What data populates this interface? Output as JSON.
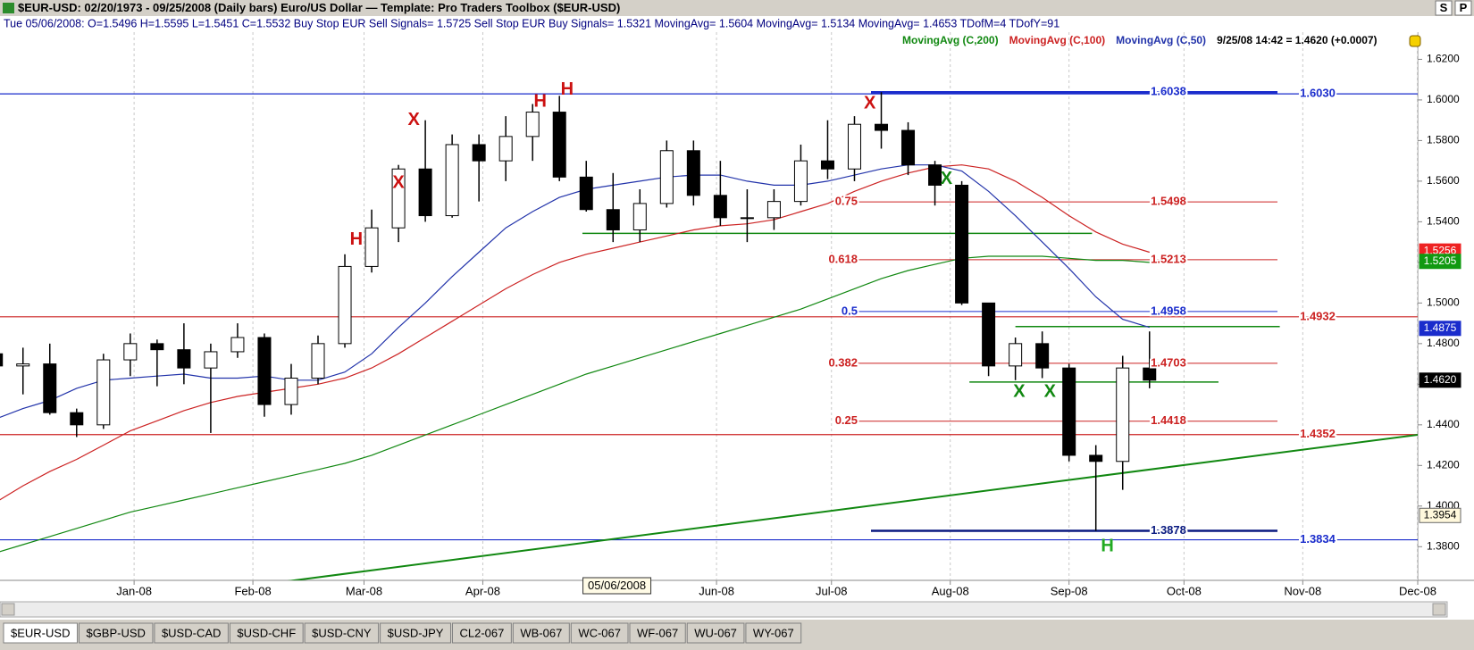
{
  "window": {
    "title": "$EUR-USD:  02/20/1973 - 09/25/2008  (Daily bars)    Euro/US Dollar  —  Template: Pro Traders Toolbox ($EUR-USD)",
    "buttons": [
      "S",
      "P"
    ]
  },
  "info_line": "Tue  05/06/2008:  O=1.5496  H=1.5595  L=1.5451  C=1.5532  Buy Stop EUR Sell Signals= 1.5725  Sell Stop EUR Buy Signals= 1.5321  MovingAvg= 1.5604  MovingAvg= 1.5134  MovingAvg= 1.4653  TDofM=4  TDofY=91",
  "last_quote": "9/25/08 14:42 = 1.4620 (+0.0007)",
  "chart_data": {
    "type": "candlestick",
    "x": [
      "2007-11-26",
      "2007-12-03",
      "2007-12-10",
      "2007-12-17",
      "2007-12-24",
      "2007-12-31",
      "2008-01-07",
      "2008-01-14",
      "2008-01-21",
      "2008-01-28",
      "2008-02-04",
      "2008-02-11",
      "2008-02-18",
      "2008-02-25",
      "2008-03-03",
      "2008-03-10",
      "2008-03-17",
      "2008-03-24",
      "2008-03-31",
      "2008-04-07",
      "2008-04-14",
      "2008-04-21",
      "2008-04-28",
      "2008-05-05",
      "2008-05-12",
      "2008-05-19",
      "2008-05-26",
      "2008-06-02",
      "2008-06-09",
      "2008-06-16",
      "2008-06-23",
      "2008-06-30",
      "2008-07-07",
      "2008-07-14",
      "2008-07-21",
      "2008-07-28",
      "2008-08-04",
      "2008-08-11",
      "2008-08-18",
      "2008-08-25",
      "2008-09-01",
      "2008-09-08",
      "2008-09-15",
      "2008-09-22"
    ],
    "ohlc": [
      [
        1.475,
        1.488,
        1.465,
        1.469
      ],
      [
        1.469,
        1.478,
        1.455,
        1.47
      ],
      [
        1.47,
        1.48,
        1.445,
        1.446
      ],
      [
        1.446,
        1.448,
        1.434,
        1.44
      ],
      [
        1.44,
        1.475,
        1.438,
        1.472
      ],
      [
        1.472,
        1.485,
        1.464,
        1.48
      ],
      [
        1.48,
        1.482,
        1.459,
        1.477
      ],
      [
        1.477,
        1.49,
        1.46,
        1.468
      ],
      [
        1.468,
        1.48,
        1.436,
        1.476
      ],
      [
        1.476,
        1.49,
        1.473,
        1.483
      ],
      [
        1.483,
        1.485,
        1.444,
        1.45
      ],
      [
        1.45,
        1.47,
        1.445,
        1.463
      ],
      [
        1.463,
        1.484,
        1.46,
        1.48
      ],
      [
        1.48,
        1.524,
        1.478,
        1.518
      ],
      [
        1.518,
        1.546,
        1.515,
        1.537
      ],
      [
        1.537,
        1.568,
        1.53,
        1.566
      ],
      [
        1.566,
        1.59,
        1.54,
        1.543
      ],
      [
        1.543,
        1.583,
        1.542,
        1.578
      ],
      [
        1.578,
        1.583,
        1.55,
        1.57
      ],
      [
        1.57,
        1.592,
        1.56,
        1.582
      ],
      [
        1.582,
        1.598,
        1.57,
        1.594
      ],
      [
        1.594,
        1.602,
        1.56,
        1.562
      ],
      [
        1.562,
        1.57,
        1.545,
        1.546
      ],
      [
        1.546,
        1.564,
        1.53,
        1.536
      ],
      [
        1.536,
        1.556,
        1.53,
        1.549
      ],
      [
        1.549,
        1.58,
        1.547,
        1.575
      ],
      [
        1.575,
        1.58,
        1.548,
        1.553
      ],
      [
        1.553,
        1.57,
        1.538,
        1.542
      ],
      [
        1.542,
        1.556,
        1.53,
        1.542
      ],
      [
        1.542,
        1.556,
        1.536,
        1.55
      ],
      [
        1.55,
        1.578,
        1.548,
        1.57
      ],
      [
        1.57,
        1.59,
        1.561,
        1.566
      ],
      [
        1.566,
        1.592,
        1.56,
        1.588
      ],
      [
        1.588,
        1.6038,
        1.576,
        1.585
      ],
      [
        1.585,
        1.589,
        1.563,
        1.568
      ],
      [
        1.568,
        1.57,
        1.548,
        1.558
      ],
      [
        1.558,
        1.56,
        1.499,
        1.5
      ],
      [
        1.5,
        1.5,
        1.464,
        1.469
      ],
      [
        1.469,
        1.483,
        1.462,
        1.48
      ],
      [
        1.48,
        1.486,
        1.463,
        1.468
      ],
      [
        1.468,
        1.47,
        1.422,
        1.425
      ],
      [
        1.425,
        1.43,
        1.3878,
        1.422
      ],
      [
        1.422,
        1.474,
        1.408,
        1.468
      ],
      [
        1.468,
        1.486,
        1.458,
        1.462
      ]
    ],
    "series": [
      {
        "name": "MovingAvg (C,200)",
        "color": "#118811",
        "values": [
          1.377,
          1.381,
          1.385,
          1.389,
          1.393,
          1.397,
          1.4,
          1.403,
          1.406,
          1.409,
          1.412,
          1.415,
          1.418,
          1.421,
          1.425,
          1.43,
          1.435,
          1.44,
          1.445,
          1.45,
          1.455,
          1.46,
          1.465,
          1.469,
          1.473,
          1.477,
          1.481,
          1.485,
          1.489,
          1.493,
          1.497,
          1.502,
          1.507,
          1.512,
          1.516,
          1.519,
          1.522,
          1.523,
          1.523,
          1.523,
          1.522,
          1.521,
          1.521,
          1.52
        ]
      },
      {
        "name": "MovingAvg (C,100)",
        "color": "#cc2222",
        "values": [
          1.402,
          1.41,
          1.417,
          1.423,
          1.43,
          1.437,
          1.442,
          1.447,
          1.451,
          1.454,
          1.456,
          1.458,
          1.46,
          1.463,
          1.468,
          1.475,
          1.483,
          1.491,
          1.499,
          1.507,
          1.514,
          1.52,
          1.524,
          1.527,
          1.53,
          1.533,
          1.536,
          1.538,
          1.539,
          1.541,
          1.545,
          1.549,
          1.555,
          1.56,
          1.564,
          1.567,
          1.568,
          1.566,
          1.56,
          1.552,
          1.543,
          1.535,
          1.529,
          1.525
        ]
      },
      {
        "name": "MovingAvg (C,50)",
        "color": "#2233aa",
        "values": [
          1.443,
          1.448,
          1.452,
          1.458,
          1.462,
          1.463,
          1.464,
          1.465,
          1.463,
          1.463,
          1.464,
          1.462,
          1.462,
          1.466,
          1.475,
          1.488,
          1.5,
          1.513,
          1.525,
          1.537,
          1.545,
          1.552,
          1.556,
          1.558,
          1.56,
          1.562,
          1.563,
          1.563,
          1.56,
          1.558,
          1.558,
          1.56,
          1.563,
          1.566,
          1.568,
          1.568,
          1.565,
          1.555,
          1.543,
          1.53,
          1.517,
          1.503,
          1.492,
          1.488
        ]
      }
    ],
    "xlim": [
      "2007-11-27",
      "2008-12-01"
    ],
    "xticks": [
      {
        "value": "2008-01-01",
        "label": "Jan-08"
      },
      {
        "value": "2008-02-01",
        "label": "Feb-08"
      },
      {
        "value": "2008-03-01",
        "label": "Mar-08"
      },
      {
        "value": "2008-04-01",
        "label": "Apr-08"
      },
      {
        "value": "2008-06-01",
        "label": "Jun-08"
      },
      {
        "value": "2008-07-01",
        "label": "Jul-08"
      },
      {
        "value": "2008-08-01",
        "label": "Aug-08"
      },
      {
        "value": "2008-09-01",
        "label": "Sep-08"
      },
      {
        "value": "2008-10-01",
        "label": "Oct-08"
      },
      {
        "value": "2008-11-01",
        "label": "Nov-08"
      },
      {
        "value": "2008-12-01",
        "label": "Dec-08"
      }
    ],
    "ylim": [
      1.3643,
      1.6325
    ],
    "yticks": [
      {
        "value": 1.38,
        "label": "1.3800"
      },
      {
        "value": 1.4,
        "label": "1.4000"
      },
      {
        "value": 1.42,
        "label": "1.4200"
      },
      {
        "value": 1.44,
        "label": "1.4400"
      },
      {
        "value": 1.46,
        "label": "1.4600"
      },
      {
        "value": 1.48,
        "label": "1.4800"
      },
      {
        "value": 1.5,
        "label": "1.5000"
      },
      {
        "value": 1.52,
        "label": "1.5200"
      },
      {
        "value": 1.54,
        "label": "1.5400"
      },
      {
        "value": 1.56,
        "label": "1.5600"
      },
      {
        "value": 1.58,
        "label": "1.5800"
      },
      {
        "value": 1.6,
        "label": "1.6000"
      },
      {
        "value": 1.62,
        "label": "1.6200"
      }
    ],
    "grid": true,
    "levels": [
      {
        "value": 1.603,
        "label": "1.6030",
        "color": "#1a2ccc"
      },
      {
        "value": 1.4932,
        "color": "#cc2222"
      },
      {
        "value": 1.4352,
        "color": "#cc2222"
      },
      {
        "value": 1.3834,
        "color": "#1a2ccc"
      }
    ],
    "fib_levels": [
      {
        "price": 1.6038,
        "color": "#1a2ccc"
      },
      {
        "ratio": 0.75,
        "price": 1.5498,
        "color": "#cc2222"
      },
      {
        "ratio": 0.618,
        "price": 1.5213,
        "color": "#cc2222"
      },
      {
        "ratio": 0.5,
        "price": 1.4958,
        "color": "#1a2ccc"
      },
      {
        "ratio": 0.382,
        "price": 1.4703,
        "color": "#cc2222"
      },
      {
        "ratio": 0.25,
        "price": 1.4418,
        "color": "#cc2222"
      },
      {
        "price": 1.3878,
        "color": "#0a1a80"
      }
    ],
    "trendlines": [
      {
        "x": [
          "2008-02-06",
          "2008-12-01"
        ],
        "y": [
          1.362,
          1.4351
        ],
        "color": "#118811"
      },
      {
        "x": [
          "2008-04-27",
          "2008-09-07"
        ],
        "y": [
          1.5343,
          1.5343
        ],
        "color": "#118811"
      },
      {
        "x": [
          "2008-08-18",
          "2008-10-26"
        ],
        "y": [
          1.4884,
          1.4884
        ],
        "color": "#118811"
      },
      {
        "x": [
          "2008-08-06",
          "2008-10-10"
        ],
        "y": [
          1.4611,
          1.4611
        ],
        "color": "#118811"
      }
    ],
    "signals": [
      {
        "x": "2008-02-28",
        "y": 1.531,
        "label": "H",
        "color": "#cc1111"
      },
      {
        "x": "2008-03-10",
        "y": 1.559,
        "label": "X",
        "color": "#cc1111"
      },
      {
        "x": "2008-03-14",
        "y": 1.59,
        "label": "X",
        "color": "#cc1111"
      },
      {
        "x": "2008-04-16",
        "y": 1.599,
        "label": "H",
        "color": "#cc1111"
      },
      {
        "x": "2008-04-23",
        "y": 1.605,
        "label": "H",
        "color": "#cc1111"
      },
      {
        "x": "2008-07-11",
        "y": 1.598,
        "label": "X",
        "color": "#cc1111"
      },
      {
        "x": "2008-07-31",
        "y": 1.561,
        "label": "X",
        "color": "#118811"
      },
      {
        "x": "2008-08-19",
        "y": 1.456,
        "label": "X",
        "color": "#118811"
      },
      {
        "x": "2008-08-27",
        "y": 1.456,
        "label": "X",
        "color": "#118811"
      },
      {
        "x": "2008-09-11",
        "y": 1.38,
        "label": "H",
        "color": "#22aa22"
      }
    ],
    "price_markers": [
      {
        "value": 1.5256,
        "color": "#ee2222",
        "text_color": "#ffffff"
      },
      {
        "value": 1.5205,
        "color": "#119911",
        "text_color": "#ffffff"
      },
      {
        "value": 1.4875,
        "color": "#1a2ccc",
        "text_color": "#ffffff"
      },
      {
        "value": 1.462,
        "label": "1.4620",
        "color": "#000000",
        "text_color": "#ffffff"
      },
      {
        "value": 1.3954,
        "color": "#fff8dc",
        "text_color": "#000000"
      }
    ],
    "crosshair": "05/06/2008"
  },
  "tabs": [
    "$EUR-USD",
    "$GBP-USD",
    "$USD-CAD",
    "$USD-CHF",
    "$USD-CNY",
    "$USD-JPY",
    "CL2-067",
    "WB-067",
    "WC-067",
    "WF-067",
    "WU-067",
    "WY-067"
  ]
}
